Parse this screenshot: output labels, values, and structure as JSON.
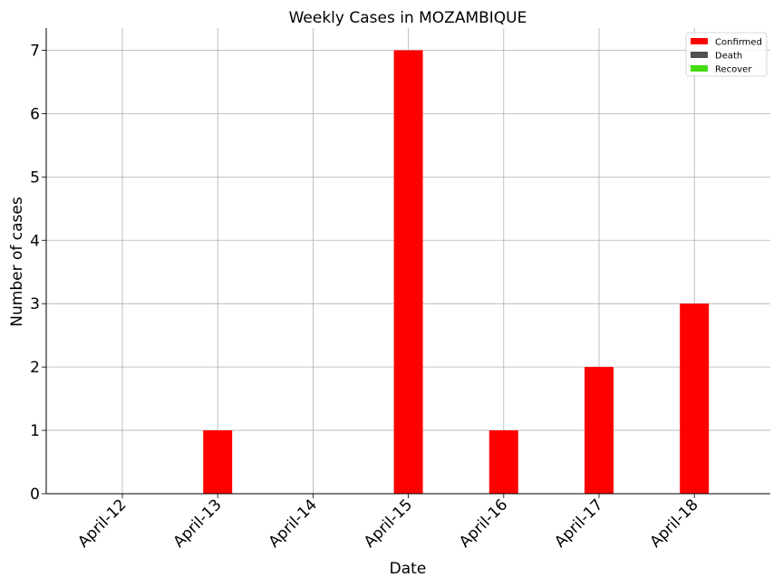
{
  "chart_data": {
    "type": "bar",
    "title": "Weekly Cases in MOZAMBIQUE",
    "xlabel": "Date",
    "ylabel": "Number of cases",
    "categories": [
      "April-12",
      "April-13",
      "April-14",
      "April-15",
      "April-16",
      "April-17",
      "April-18"
    ],
    "series": [
      {
        "name": "Confirmed",
        "color": "#ff0000",
        "values": [
          0,
          1,
          0,
          7,
          1,
          2,
          3
        ]
      },
      {
        "name": "Death",
        "color": "#505050",
        "values": [
          0,
          0,
          0,
          0,
          0,
          0,
          0
        ]
      },
      {
        "name": "Recover",
        "color": "#44dd11",
        "values": [
          0,
          0,
          0,
          0,
          0,
          0,
          0
        ]
      }
    ],
    "ylim": [
      0,
      7.35
    ],
    "yticks": [
      "0",
      "1",
      "2",
      "3",
      "4",
      "5",
      "6",
      "7"
    ],
    "grid": true,
    "legend_position": "top-right",
    "x_tick_rotation": "45 degrees"
  }
}
